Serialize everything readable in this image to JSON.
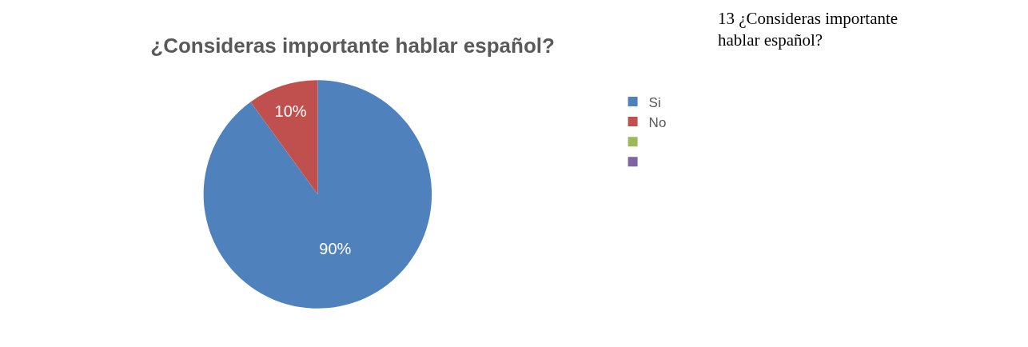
{
  "chart_data": {
    "type": "pie",
    "title": "¿Consideras importante hablar español?",
    "categories": [
      "Si",
      "No",
      null,
      null
    ],
    "values": [
      90,
      10,
      0,
      0
    ],
    "colors": [
      "#4f81bd",
      "#c0504d",
      "#9bbb59",
      "#8064a2"
    ],
    "value_labels": [
      "90%",
      "10%",
      null,
      null
    ],
    "legend": "right",
    "annotations": [
      "13 ¿Consideras importante hablar español?"
    ]
  }
}
